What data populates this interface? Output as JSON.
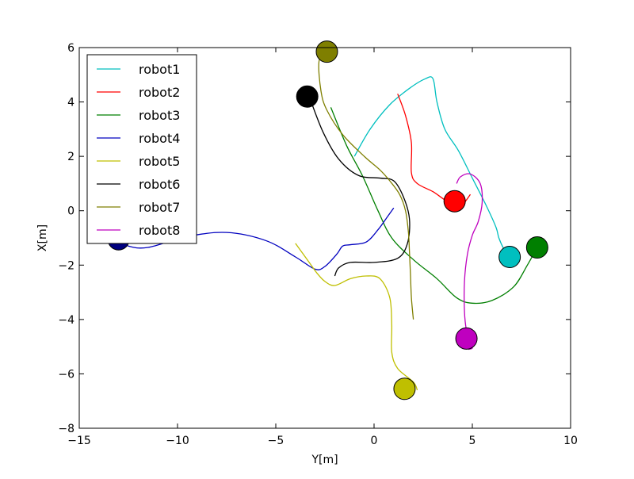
{
  "chart_data": {
    "type": "line",
    "title": "",
    "xlabel": "Y[m]",
    "ylabel": "X[m]",
    "xlim": [
      -15,
      10
    ],
    "ylim": [
      -8,
      6
    ],
    "xticks": [
      -15,
      -10,
      -5,
      0,
      5,
      10
    ],
    "yticks": [
      -8,
      -6,
      -4,
      -2,
      0,
      2,
      4,
      6
    ],
    "xtick_labels": [
      "−15",
      "−10",
      "−5",
      "0",
      "5",
      "10"
    ],
    "ytick_labels": [
      "−8",
      "−6",
      "−4",
      "−2",
      "0",
      "2",
      "4",
      "6"
    ],
    "grid": false,
    "legend_position": "top-left",
    "series": [
      {
        "name": "robot1",
        "color": "#00bfbf",
        "x": [
          -1.0,
          -0.2,
          0.8,
          1.8,
          2.6,
          3.0,
          3.2,
          3.6,
          4.3,
          5.0,
          5.7,
          6.2,
          6.35,
          6.6,
          6.9
        ],
        "y": [
          2.0,
          3.0,
          3.9,
          4.5,
          4.85,
          4.85,
          4.0,
          3.0,
          2.2,
          1.2,
          0.2,
          -0.6,
          -1.0,
          -1.4,
          -1.7
        ],
        "marker": {
          "x": 6.9,
          "y": -1.7,
          "color": "#00bfbf"
        }
      },
      {
        "name": "robot2",
        "color": "#ff0000",
        "x": [
          1.2,
          1.6,
          1.9,
          1.9,
          2.2,
          3.0,
          3.6,
          4.0,
          4.3,
          4.6,
          4.9
        ],
        "y": [
          4.3,
          3.5,
          2.5,
          1.4,
          1.0,
          0.7,
          0.4,
          0.3,
          0.1,
          0.3,
          0.6
        ],
        "marker": {
          "x": 4.1,
          "y": 0.35,
          "color": "#ff0000"
        }
      },
      {
        "name": "robot3",
        "color": "#007f00",
        "x": [
          -2.2,
          -1.4,
          -0.6,
          0.2,
          0.9,
          2.0,
          3.2,
          4.2,
          5.0,
          6.0,
          7.1,
          7.8,
          8.3
        ],
        "y": [
          3.8,
          2.4,
          1.3,
          0.0,
          -1.0,
          -1.8,
          -2.5,
          -3.2,
          -3.4,
          -3.3,
          -2.8,
          -2.0,
          -1.35
        ],
        "marker": {
          "x": 8.3,
          "y": -1.35,
          "color": "#007f00"
        }
      },
      {
        "name": "robot4",
        "color": "#0000bf",
        "x": [
          -13.0,
          -12.5,
          -11.5,
          -9.5,
          -7.5,
          -5.5,
          -4.0,
          -3.0,
          -2.5,
          -1.9,
          -1.6,
          -1.2,
          -0.4,
          0.2,
          0.7,
          1.0
        ],
        "y": [
          -1.05,
          -1.3,
          -1.35,
          -0.95,
          -0.8,
          -1.1,
          -1.7,
          -2.15,
          -2.05,
          -1.6,
          -1.3,
          -1.25,
          -1.15,
          -0.7,
          -0.2,
          0.1
        ],
        "marker": {
          "x": -13.0,
          "y": -1.05,
          "color": "#00007f"
        }
      },
      {
        "name": "robot5",
        "color": "#bfbf00",
        "x": [
          -4.0,
          -3.3,
          -2.9,
          -2.5,
          -2.0,
          -1.2,
          -0.4,
          0.3,
          0.8,
          0.9,
          0.9,
          1.2,
          2.0,
          2.2
        ],
        "y": [
          -1.2,
          -1.9,
          -2.3,
          -2.6,
          -2.75,
          -2.5,
          -2.4,
          -2.5,
          -3.2,
          -4.2,
          -5.2,
          -5.8,
          -6.3,
          -6.6
        ],
        "marker": {
          "x": 1.55,
          "y": -6.55,
          "color": "#bfbf00"
        }
      },
      {
        "name": "robot6",
        "color": "#000000",
        "x": [
          -3.3,
          -2.6,
          -1.8,
          -0.8,
          0.3,
          1.0,
          1.5,
          1.8,
          1.7,
          1.2,
          0.0,
          -1.2,
          -1.8,
          -2.0
        ],
        "y": [
          4.2,
          2.9,
          1.9,
          1.3,
          1.2,
          1.1,
          0.5,
          -0.3,
          -1.2,
          -1.75,
          -1.9,
          -1.9,
          -2.1,
          -2.4
        ],
        "marker": {
          "x": -3.4,
          "y": 4.2,
          "color": "#000000"
        }
      },
      {
        "name": "robot7",
        "color": "#7f7f00",
        "x": [
          -2.4,
          -2.8,
          -2.7,
          -2.4,
          -1.6,
          -0.5,
          0.3,
          0.8,
          1.3,
          1.6,
          1.75,
          1.8,
          1.85,
          1.9,
          2.0
        ],
        "y": [
          5.85,
          5.5,
          4.4,
          3.7,
          2.8,
          2.0,
          1.5,
          1.1,
          0.6,
          0.0,
          -0.8,
          -1.5,
          -2.3,
          -3.2,
          -4.0
        ],
        "marker": {
          "x": -2.4,
          "y": 5.85,
          "color": "#7f7f00"
        }
      },
      {
        "name": "robot8",
        "color": "#bf00bf",
        "x": [
          4.2,
          4.4,
          4.9,
          5.4,
          5.5,
          5.3,
          5.0,
          4.75,
          4.6,
          4.6,
          4.7,
          4.9,
          5.0,
          4.8
        ],
        "y": [
          1.0,
          1.25,
          1.35,
          1.0,
          0.3,
          -0.4,
          -0.9,
          -1.6,
          -2.6,
          -3.7,
          -4.4,
          -4.9,
          -5.05,
          -5.1
        ],
        "marker": {
          "x": 4.7,
          "y": -4.7,
          "color": "#bf00bf"
        }
      }
    ]
  }
}
